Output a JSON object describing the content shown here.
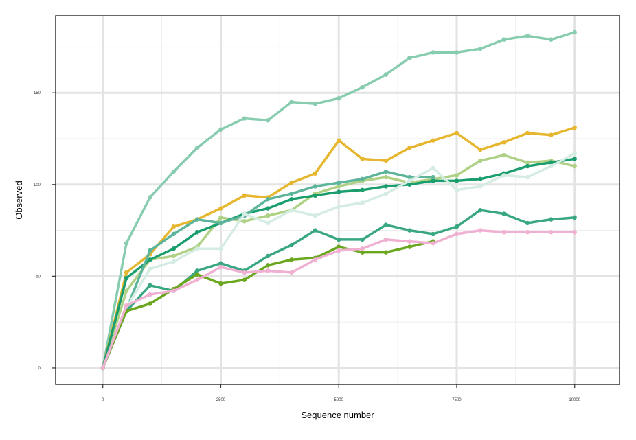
{
  "chart_data": {
    "type": "line",
    "xlabel": "Sequence number",
    "ylabel": "Observed",
    "xlim": [
      -1000,
      10950
    ],
    "ylim": [
      -9,
      192
    ],
    "x_ticks": [
      0,
      2500,
      5000,
      7500,
      10000
    ],
    "x_tick_labels": [
      "0",
      "2500",
      "5000",
      "7500",
      "10000"
    ],
    "y_ticks": [
      0,
      50,
      100,
      150
    ],
    "y_tick_labels": [
      "0",
      "50",
      "100",
      "150"
    ],
    "grid": true,
    "legend": "none",
    "x": [
      0,
      500,
      1000,
      1500,
      2000,
      2500,
      3000,
      3500,
      4000,
      4500,
      5000,
      5500,
      6000,
      6500,
      7000,
      7500,
      8000,
      8500,
      9000,
      9500,
      10000
    ],
    "series": [
      {
        "color": "#88ccb0",
        "values": [
          0,
          68,
          93,
          107,
          120,
          130,
          136,
          135,
          145,
          144,
          147,
          153,
          160,
          169,
          172,
          172,
          174,
          179,
          181,
          179,
          183
        ]
      },
      {
        "color": "#e6b62e",
        "values": [
          0,
          52,
          62,
          77,
          81,
          87,
          94,
          93,
          101,
          106,
          124,
          114,
          113,
          120,
          124,
          128,
          119,
          123,
          128,
          127,
          131
        ]
      },
      {
        "color": "#aed185",
        "values": [
          0,
          42,
          59,
          61,
          66,
          82,
          80,
          83,
          86,
          95,
          99,
          102,
          104,
          101,
          103,
          105,
          113,
          116,
          112,
          113,
          110
        ]
      },
      {
        "color": "#1b9e6e",
        "values": [
          0,
          49,
          59,
          65,
          74,
          79,
          84,
          87,
          92,
          94,
          96,
          97,
          99,
          100,
          102,
          102,
          103,
          106,
          110,
          112,
          114
        ]
      },
      {
        "color": "#5cb49a",
        "values": [
          0,
          32,
          64,
          73,
          81,
          79,
          83,
          92,
          95,
          99,
          101,
          103,
          107,
          104,
          104,
          null,
          null,
          null,
          null,
          null,
          null
        ]
      },
      {
        "color": "#d5ece3",
        "values": [
          0,
          33,
          54,
          58,
          65,
          65,
          84,
          79,
          86,
          83,
          88,
          90,
          95,
          102,
          109,
          97,
          99,
          105,
          104,
          110,
          117
        ]
      },
      {
        "color": "#3aa783",
        "values": [
          0,
          31,
          45,
          42,
          53,
          57,
          53,
          61,
          67,
          75,
          70,
          70,
          78,
          75,
          73,
          77,
          86,
          84,
          79,
          81,
          82
        ]
      },
      {
        "color": "#6aa61e",
        "values": [
          0,
          31,
          35,
          43,
          51,
          46,
          48,
          56,
          59,
          60,
          66,
          63,
          63,
          66,
          69,
          null,
          null,
          null,
          null,
          null,
          null
        ]
      },
      {
        "color": "#f0b0d2",
        "values": [
          0,
          34,
          40,
          42,
          48,
          55,
          52,
          53,
          52,
          59,
          64,
          65,
          70,
          69,
          68,
          73,
          75,
          74,
          74,
          74,
          74
        ]
      }
    ]
  }
}
